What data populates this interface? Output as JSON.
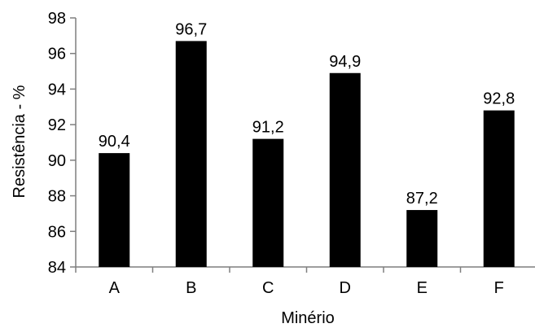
{
  "chart_data": {
    "type": "bar",
    "categories": [
      "A",
      "B",
      "C",
      "D",
      "E",
      "F"
    ],
    "values": [
      90.4,
      96.7,
      91.2,
      94.9,
      87.2,
      92.8
    ],
    "data_labels": [
      "90,4",
      "96,7",
      "91,2",
      "94,9",
      "87,2",
      "92,8"
    ],
    "y_ticks": [
      84,
      86,
      88,
      90,
      92,
      94,
      96,
      98
    ],
    "ylim": [
      84,
      98
    ],
    "xlabel": "Minério",
    "ylabel": "Resistência - %",
    "grid": false,
    "legend": "none",
    "bar_color": "#000000",
    "axis_color": "#7f7f7f"
  }
}
